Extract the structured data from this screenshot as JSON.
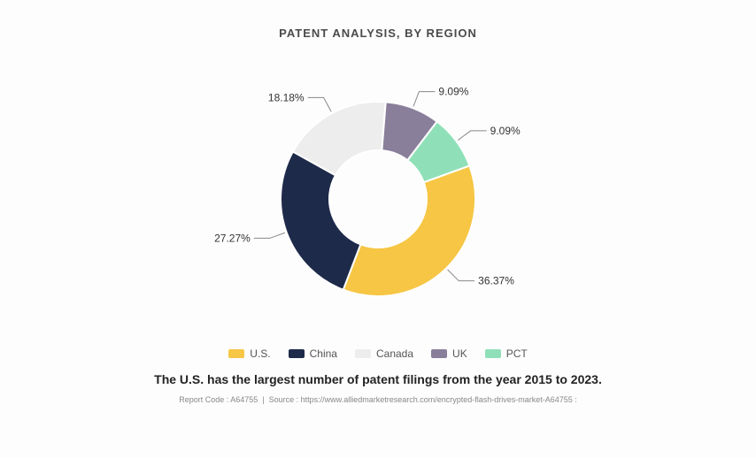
{
  "chart": {
    "type": "donut",
    "title": "PATENT ANALYSIS, BY REGION",
    "title_fontsize": 13,
    "title_color": "#4a4a4a",
    "background_color": "#fdfdfd",
    "outer_radius": 110,
    "inner_radius": 55,
    "start_angle_deg": 340,
    "label_fontsize": 12,
    "label_color": "#333333",
    "leader_color": "#888888",
    "slices": [
      {
        "name": "U.S.",
        "value": 36.37,
        "label": "36.37%",
        "color": "#f6c644"
      },
      {
        "name": "China",
        "value": 27.27,
        "label": "27.27%",
        "color": "#1e2a4a"
      },
      {
        "name": "Canada",
        "value": 18.18,
        "label": "18.18%",
        "color": "#ededed"
      },
      {
        "name": "UK",
        "value": 9.09,
        "label": "9.09%",
        "color": "#8a7f9a"
      },
      {
        "name": "PCT",
        "value": 9.09,
        "label": "9.09%",
        "color": "#8fe0b8"
      }
    ],
    "legend_fontsize": 12,
    "legend_color": "#555555"
  },
  "caption": "The U.S. has the largest number of patent filings from the year 2015 to 2023.",
  "caption_fontsize": 14,
  "caption_color": "#222222",
  "footer": {
    "report_code_label": "Report Code :",
    "report_code": "A64755",
    "source_label": "Source :",
    "source": "https://www.alliedmarketresearch.com/encrypted-flash-drives-market-A64755 :",
    "fontsize": 9,
    "color": "#888888"
  }
}
